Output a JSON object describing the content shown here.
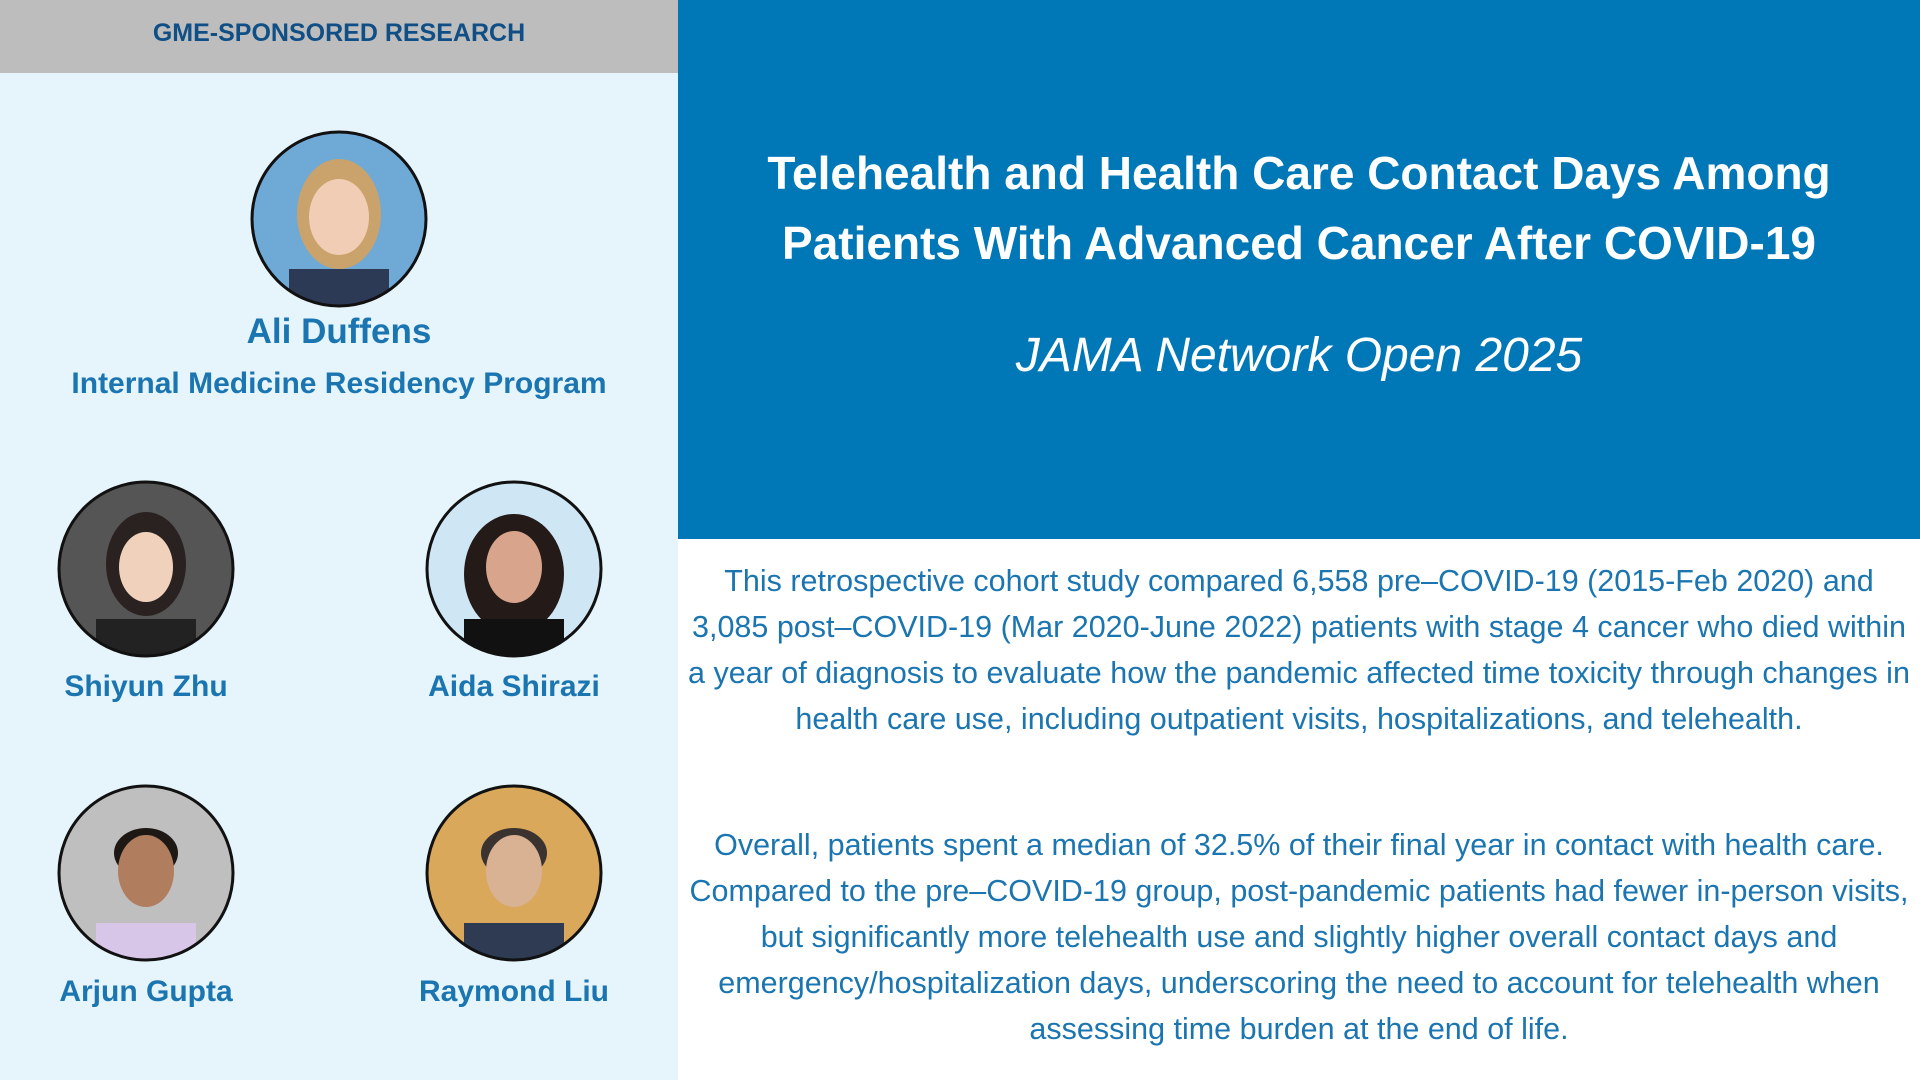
{
  "header": {
    "label": "GME-SPONSORED RESEARCH"
  },
  "featured": {
    "name": "Ali Duffens",
    "program": "Internal Medicine Residency Program"
  },
  "people": [
    {
      "name": "Shiyun Zhu"
    },
    {
      "name": "Aida Shirazi"
    },
    {
      "name": "Arjun Gupta"
    },
    {
      "name": "Raymond Liu"
    }
  ],
  "article": {
    "title": "Telehealth and Health Care Contact Days Among Patients With Advanced Cancer After COVID-19",
    "journal": "JAMA Network Open 2025",
    "paragraphs": [
      "This retrospective cohort study compared 6,558 pre–COVID-19 (2015-Feb 2020) and 3,085 post–COVID-19 (Mar 2020-June 2022) patients with stage 4 cancer who died within a year of diagnosis to evaluate how the pandemic affected time toxicity through changes in health care use, including outpatient visits, hospitalizations, and telehealth.",
      "Overall, patients spent a median of 32.5% of their final year in contact with health care. Compared to the pre–COVID-19 group, post-pandemic patients had fewer in-person visits, but significantly more telehealth use and slightly higher overall contact days and emergency/hospitalization days, underscoring the need to account for telehealth when assessing time burden at the end of life."
    ]
  }
}
